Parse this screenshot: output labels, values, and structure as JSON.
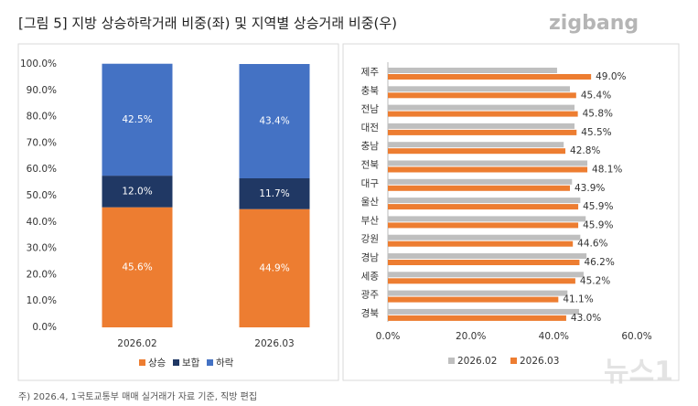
{
  "header": {
    "title": "[그림 5] 지방 상승하락거래 비중(좌) 및 지역별 상승거래 비중(우)",
    "logo": "zigbang"
  },
  "chart_data": [
    {
      "type": "stacked-bar",
      "categories": [
        "2026.02",
        "2026.03"
      ],
      "series": [
        {
          "name": "상승",
          "color": "#ed7d31",
          "values": [
            45.6,
            44.9
          ],
          "value_labels": [
            "45.6%",
            "44.9%"
          ]
        },
        {
          "name": "보합",
          "color": "#203864",
          "values": [
            12.0,
            11.7
          ],
          "value_labels": [
            "12.0%",
            "11.7%"
          ]
        },
        {
          "name": "하락",
          "color": "#4472c4",
          "values": [
            42.5,
            43.4
          ],
          "value_labels": [
            "42.5%",
            "43.4%"
          ]
        }
      ],
      "ylim": [
        0,
        100
      ],
      "yticks": [
        {
          "value": 0,
          "label": "0.0%"
        },
        {
          "value": 10,
          "label": "10.0%"
        },
        {
          "value": 20,
          "label": "20.0%"
        },
        {
          "value": 30,
          "label": "30.0%"
        },
        {
          "value": 40,
          "label": "40.0%"
        },
        {
          "value": 50,
          "label": "50.0%"
        },
        {
          "value": 60,
          "label": "60.0%"
        },
        {
          "value": 70,
          "label": "70.0%"
        },
        {
          "value": 80,
          "label": "80.0%"
        },
        {
          "value": 90,
          "label": "90.0%"
        },
        {
          "value": 100,
          "label": "100.0%"
        }
      ],
      "grid": false,
      "legend": "bottom"
    },
    {
      "type": "horizontal-bar",
      "categories": [
        "제주",
        "충북",
        "전남",
        "대전",
        "충남",
        "전북",
        "대구",
        "울산",
        "부산",
        "강원",
        "경남",
        "세종",
        "광주",
        "경북"
      ],
      "series": [
        {
          "name": "2026.02",
          "color": "#bfbfbf",
          "values": [
            40.8,
            43.9,
            45.0,
            45.0,
            42.4,
            48.1,
            44.4,
            46.4,
            47.7,
            46.4,
            47.9,
            47.2,
            43.3,
            46.1
          ]
        },
        {
          "name": "2026.03",
          "color": "#ed7d31",
          "values": [
            49.0,
            45.4,
            45.8,
            45.5,
            42.8,
            48.1,
            43.9,
            45.9,
            45.9,
            44.6,
            46.2,
            45.2,
            41.1,
            43.0
          ],
          "value_labels": [
            "49.0%",
            "45.4%",
            "45.8%",
            "45.5%",
            "42.8%",
            "48.1%",
            "43.9%",
            "45.9%",
            "45.9%",
            "44.6%",
            "46.2%",
            "45.2%",
            "41.1%",
            "43.0%"
          ]
        }
      ],
      "xlim": [
        0,
        60
      ],
      "xticks": [
        {
          "value": 0,
          "label": "0.0%"
        },
        {
          "value": 20,
          "label": "20.0%"
        },
        {
          "value": 40,
          "label": "40.0%"
        },
        {
          "value": 60,
          "label": "60.0%"
        }
      ],
      "grid": false,
      "legend": "bottom"
    }
  ],
  "footer": {
    "note": "주) 2026.4, 1국토교통부 매매 실거래가 자료 기준, 직방 편집",
    "watermark": "뉴스1"
  }
}
